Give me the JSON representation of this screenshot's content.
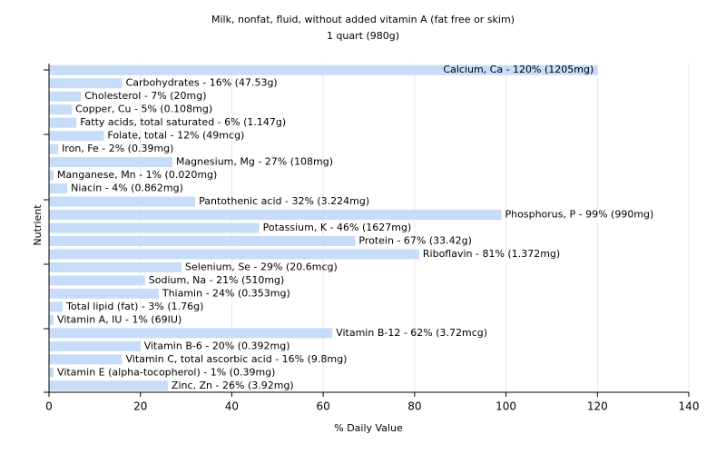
{
  "chart_data": {
    "type": "hbar",
    "title": "Milk, nonfat, fluid, without added vitamin A (fat free or skim)",
    "subtitle": "1 quart (980g)",
    "x_label": "% Daily Value",
    "y_label": "Nutrient",
    "values": [
      120,
      16,
      7,
      5,
      6,
      12,
      2,
      27,
      1,
      4,
      32,
      99,
      46,
      67,
      81,
      29,
      21,
      24,
      3,
      1,
      62,
      20,
      16,
      1,
      26
    ],
    "value_labels": [
      "Calcium, Ca - 120% (1205mg)",
      "Carbohydrates - 16% (47.53g)",
      "Cholesterol - 7% (20mg)",
      "Copper, Cu - 5% (0.108mg)",
      "Fatty acids, total saturated - 6% (1.147g)",
      "Folate, total - 12% (49mcg)",
      "Iron, Fe - 2% (0.39mg)",
      "Magnesium, Mg - 27% (108mg)",
      "Manganese, Mn - 1% (0.020mg)",
      "Niacin - 4% (0.862mg)",
      "Pantothenic acid - 32% (3.224mg)",
      "Phosphorus, P - 99% (990mg)",
      "Potassium, K - 46% (1627mg)",
      "Protein - 67% (33.42g)",
      "Riboflavin - 81% (1.372mg)",
      "Selenium, Se - 29% (20.6mcg)",
      "Sodium, Na - 21% (510mg)",
      "Thiamin - 24% (0.353mg)",
      "Total lipid (fat) - 3% (1.76g)",
      "Vitamin A, IU - 1% (69IU)",
      "Vitamin B-12 - 62% (3.72mcg)",
      "Vitamin B-6 - 20% (0.392mg)",
      "Vitamin C, total ascorbic acid - 16% (9.8mg)",
      "Vitamin E (alpha-tocopherol) - 1% (0.39mg)",
      "Zinc, Zn - 26% (3.92mg)"
    ],
    "color": "#c6dcf8",
    "xlim": [
      0,
      140
    ],
    "xticks": [
      0,
      20,
      40,
      60,
      80,
      100,
      120,
      140
    ],
    "grid": true
  }
}
